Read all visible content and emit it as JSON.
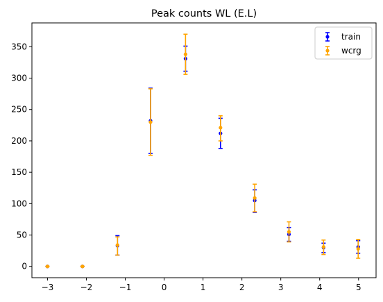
{
  "chart_data": {
    "type": "scatter",
    "title": "Peak counts WL (E.L)",
    "xlabel": "",
    "ylabel": "",
    "xlim": [
      -3.4,
      5.45
    ],
    "ylim": [
      -18,
      388
    ],
    "xticks": [
      -3,
      -2,
      -1,
      0,
      1,
      2,
      3,
      4,
      5
    ],
    "yticks": [
      0,
      50,
      100,
      150,
      200,
      250,
      300,
      350
    ],
    "grid": false,
    "legend_position": "top-right",
    "series": [
      {
        "name": "train",
        "color": "#0000ff",
        "x": [
          -3.0,
          -2.1,
          -1.2,
          -0.35,
          0.55,
          1.45,
          2.33,
          3.21,
          4.1,
          4.99
        ],
        "y": [
          0,
          0,
          33,
          232,
          331,
          212,
          105,
          51,
          30,
          31
        ],
        "yerr_low": [
          0,
          0,
          15,
          52,
          20,
          24,
          19,
          11,
          8,
          10
        ],
        "yerr_high": [
          0,
          0,
          16,
          52,
          20,
          24,
          17,
          11,
          7,
          10
        ]
      },
      {
        "name": "wcrg",
        "color": "#ffa500",
        "x": [
          -3.0,
          -2.1,
          -1.2,
          -0.35,
          0.55,
          1.45,
          2.33,
          3.21,
          4.1,
          4.99
        ],
        "y": [
          0,
          0,
          34,
          230,
          338,
          221,
          109,
          55,
          31,
          28
        ],
        "yerr_low": [
          0,
          0,
          16,
          53,
          32,
          21,
          22,
          16,
          12,
          15
        ],
        "yerr_high": [
          0,
          0,
          13,
          53,
          32,
          19,
          22,
          16,
          11,
          15
        ]
      }
    ]
  }
}
